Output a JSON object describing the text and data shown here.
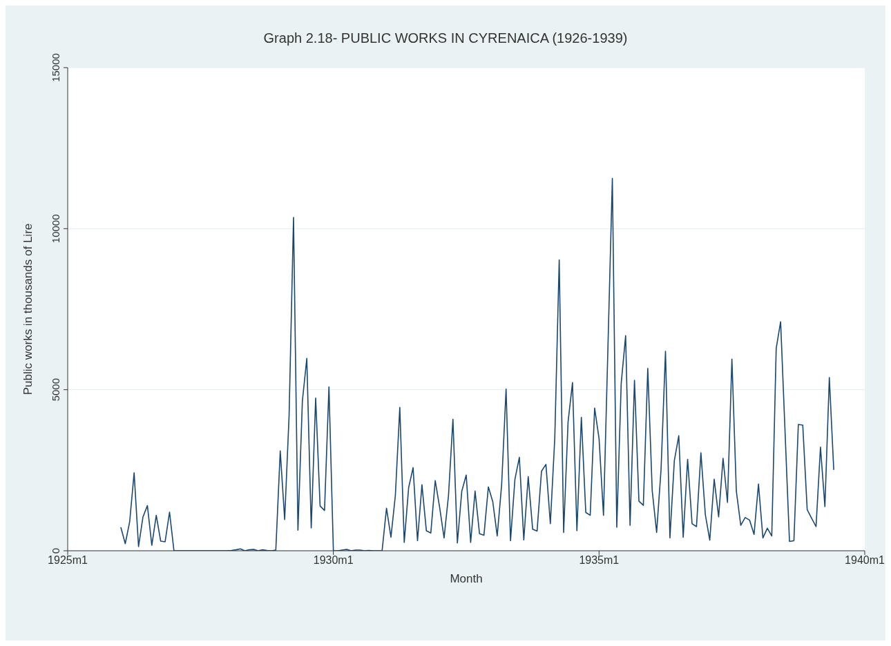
{
  "chart_data": {
    "type": "line",
    "title": "Graph 2.18- PUBLIC WORKS IN CYRENAICA (1926-1939)",
    "xlabel": "Month",
    "ylabel": "Public works in thousands of Lire",
    "x": [
      "1926-01",
      "1926-02",
      "1926-03",
      "1926-04",
      "1926-05",
      "1926-06",
      "1926-07",
      "1926-08",
      "1926-09",
      "1926-10",
      "1926-11",
      "1926-12",
      "1927-01",
      "1927-02",
      "1927-03",
      "1927-04",
      "1927-05",
      "1927-06",
      "1927-07",
      "1927-08",
      "1927-09",
      "1927-10",
      "1927-11",
      "1927-12",
      "1928-01",
      "1928-02",
      "1928-03",
      "1928-04",
      "1928-05",
      "1928-06",
      "1928-07",
      "1928-08",
      "1928-09",
      "1928-10",
      "1928-11",
      "1928-12",
      "1929-01",
      "1929-02",
      "1929-03",
      "1929-04",
      "1929-05",
      "1929-06",
      "1929-07",
      "1929-08",
      "1929-09",
      "1929-10",
      "1929-11",
      "1929-12",
      "1930-01",
      "1930-02",
      "1930-03",
      "1930-04",
      "1930-05",
      "1930-06",
      "1930-07",
      "1930-08",
      "1930-09",
      "1930-10",
      "1930-11",
      "1930-12",
      "1931-01",
      "1931-02",
      "1931-03",
      "1931-04",
      "1931-05",
      "1931-06",
      "1931-07",
      "1931-08",
      "1931-09",
      "1931-10",
      "1931-11",
      "1931-12",
      "1932-01",
      "1932-02",
      "1932-03",
      "1932-04",
      "1932-05",
      "1932-06",
      "1932-07",
      "1932-08",
      "1932-09",
      "1932-10",
      "1932-11",
      "1932-12",
      "1933-01",
      "1933-02",
      "1933-03",
      "1933-04",
      "1933-05",
      "1933-06",
      "1933-07",
      "1933-08",
      "1933-09",
      "1933-10",
      "1933-11",
      "1933-12",
      "1934-01",
      "1934-02",
      "1934-03",
      "1934-04",
      "1934-05",
      "1934-06",
      "1934-07",
      "1934-08",
      "1934-09",
      "1934-10",
      "1934-11",
      "1934-12",
      "1935-01",
      "1935-02",
      "1935-03",
      "1935-04",
      "1935-05",
      "1935-06",
      "1935-07",
      "1935-08",
      "1935-09",
      "1935-10",
      "1935-11",
      "1935-12",
      "1936-01",
      "1936-02",
      "1936-03",
      "1936-04",
      "1936-05",
      "1936-06",
      "1936-07",
      "1936-08",
      "1936-09",
      "1936-10",
      "1936-11",
      "1936-12",
      "1937-01",
      "1937-02",
      "1937-03",
      "1937-04",
      "1937-05",
      "1937-06",
      "1937-07",
      "1937-08",
      "1937-09",
      "1937-10",
      "1937-11",
      "1937-12",
      "1938-01",
      "1938-02",
      "1938-03",
      "1938-04",
      "1938-05",
      "1938-06",
      "1938-07",
      "1938-08",
      "1938-09",
      "1938-10",
      "1938-11",
      "1938-12",
      "1939-01",
      "1939-02",
      "1939-03",
      "1939-04",
      "1939-05",
      "1939-06"
    ],
    "values": [
      730,
      220,
      900,
      2420,
      130,
      1050,
      1400,
      170,
      1100,
      300,
      280,
      1200,
      0,
      0,
      0,
      0,
      0,
      0,
      0,
      0,
      0,
      0,
      0,
      0,
      0,
      10,
      30,
      60,
      0,
      30,
      40,
      0,
      30,
      10,
      0,
      20,
      3100,
      970,
      4200,
      10350,
      640,
      4650,
      5970,
      710,
      4740,
      1390,
      1250,
      5090,
      0,
      0,
      20,
      40,
      0,
      20,
      20,
      0,
      10,
      0,
      0,
      0,
      1320,
      420,
      1720,
      4450,
      260,
      1960,
      2580,
      310,
      2050,
      620,
      550,
      2180,
      1340,
      400,
      1720,
      4080,
      240,
      1850,
      2350,
      260,
      1850,
      530,
      480,
      1980,
      1520,
      460,
      2050,
      5020,
      310,
      2220,
      2900,
      340,
      2300,
      670,
      610,
      2470,
      2680,
      840,
      3500,
      9030,
      570,
      4000,
      5220,
      620,
      4140,
      1190,
      1100,
      4430,
      3480,
      1100,
      6300,
      11560,
      730,
      5200,
      6680,
      790,
      5290,
      1540,
      1410,
      5660,
      1870,
      570,
      2530,
      6190,
      400,
      2800,
      3570,
      420,
      2840,
      840,
      750,
      3040,
      1120,
      330,
      2220,
      1050,
      2870,
      1500,
      5950,
      1850,
      790,
      1030,
      950,
      510,
      2070,
      400,
      700,
      460,
      6280,
      7110,
      3700,
      290,
      310,
      3920,
      3900,
      1280,
      1010,
      750,
      3220,
      1370,
      5380,
      2510
    ],
    "color": "#1a476f",
    "xlim": [
      "1925-01",
      "1940-01"
    ],
    "xticks": [
      {
        "value": "1925-01",
        "label": "1925m1"
      },
      {
        "value": "1930-01",
        "label": "1930m1"
      },
      {
        "value": "1935-01",
        "label": "1935m1"
      },
      {
        "value": "1940-01",
        "label": "1940m1"
      }
    ],
    "ylim": [
      0,
      15000
    ],
    "yticks": [
      0,
      5000,
      10000,
      15000
    ],
    "grid": "y"
  }
}
